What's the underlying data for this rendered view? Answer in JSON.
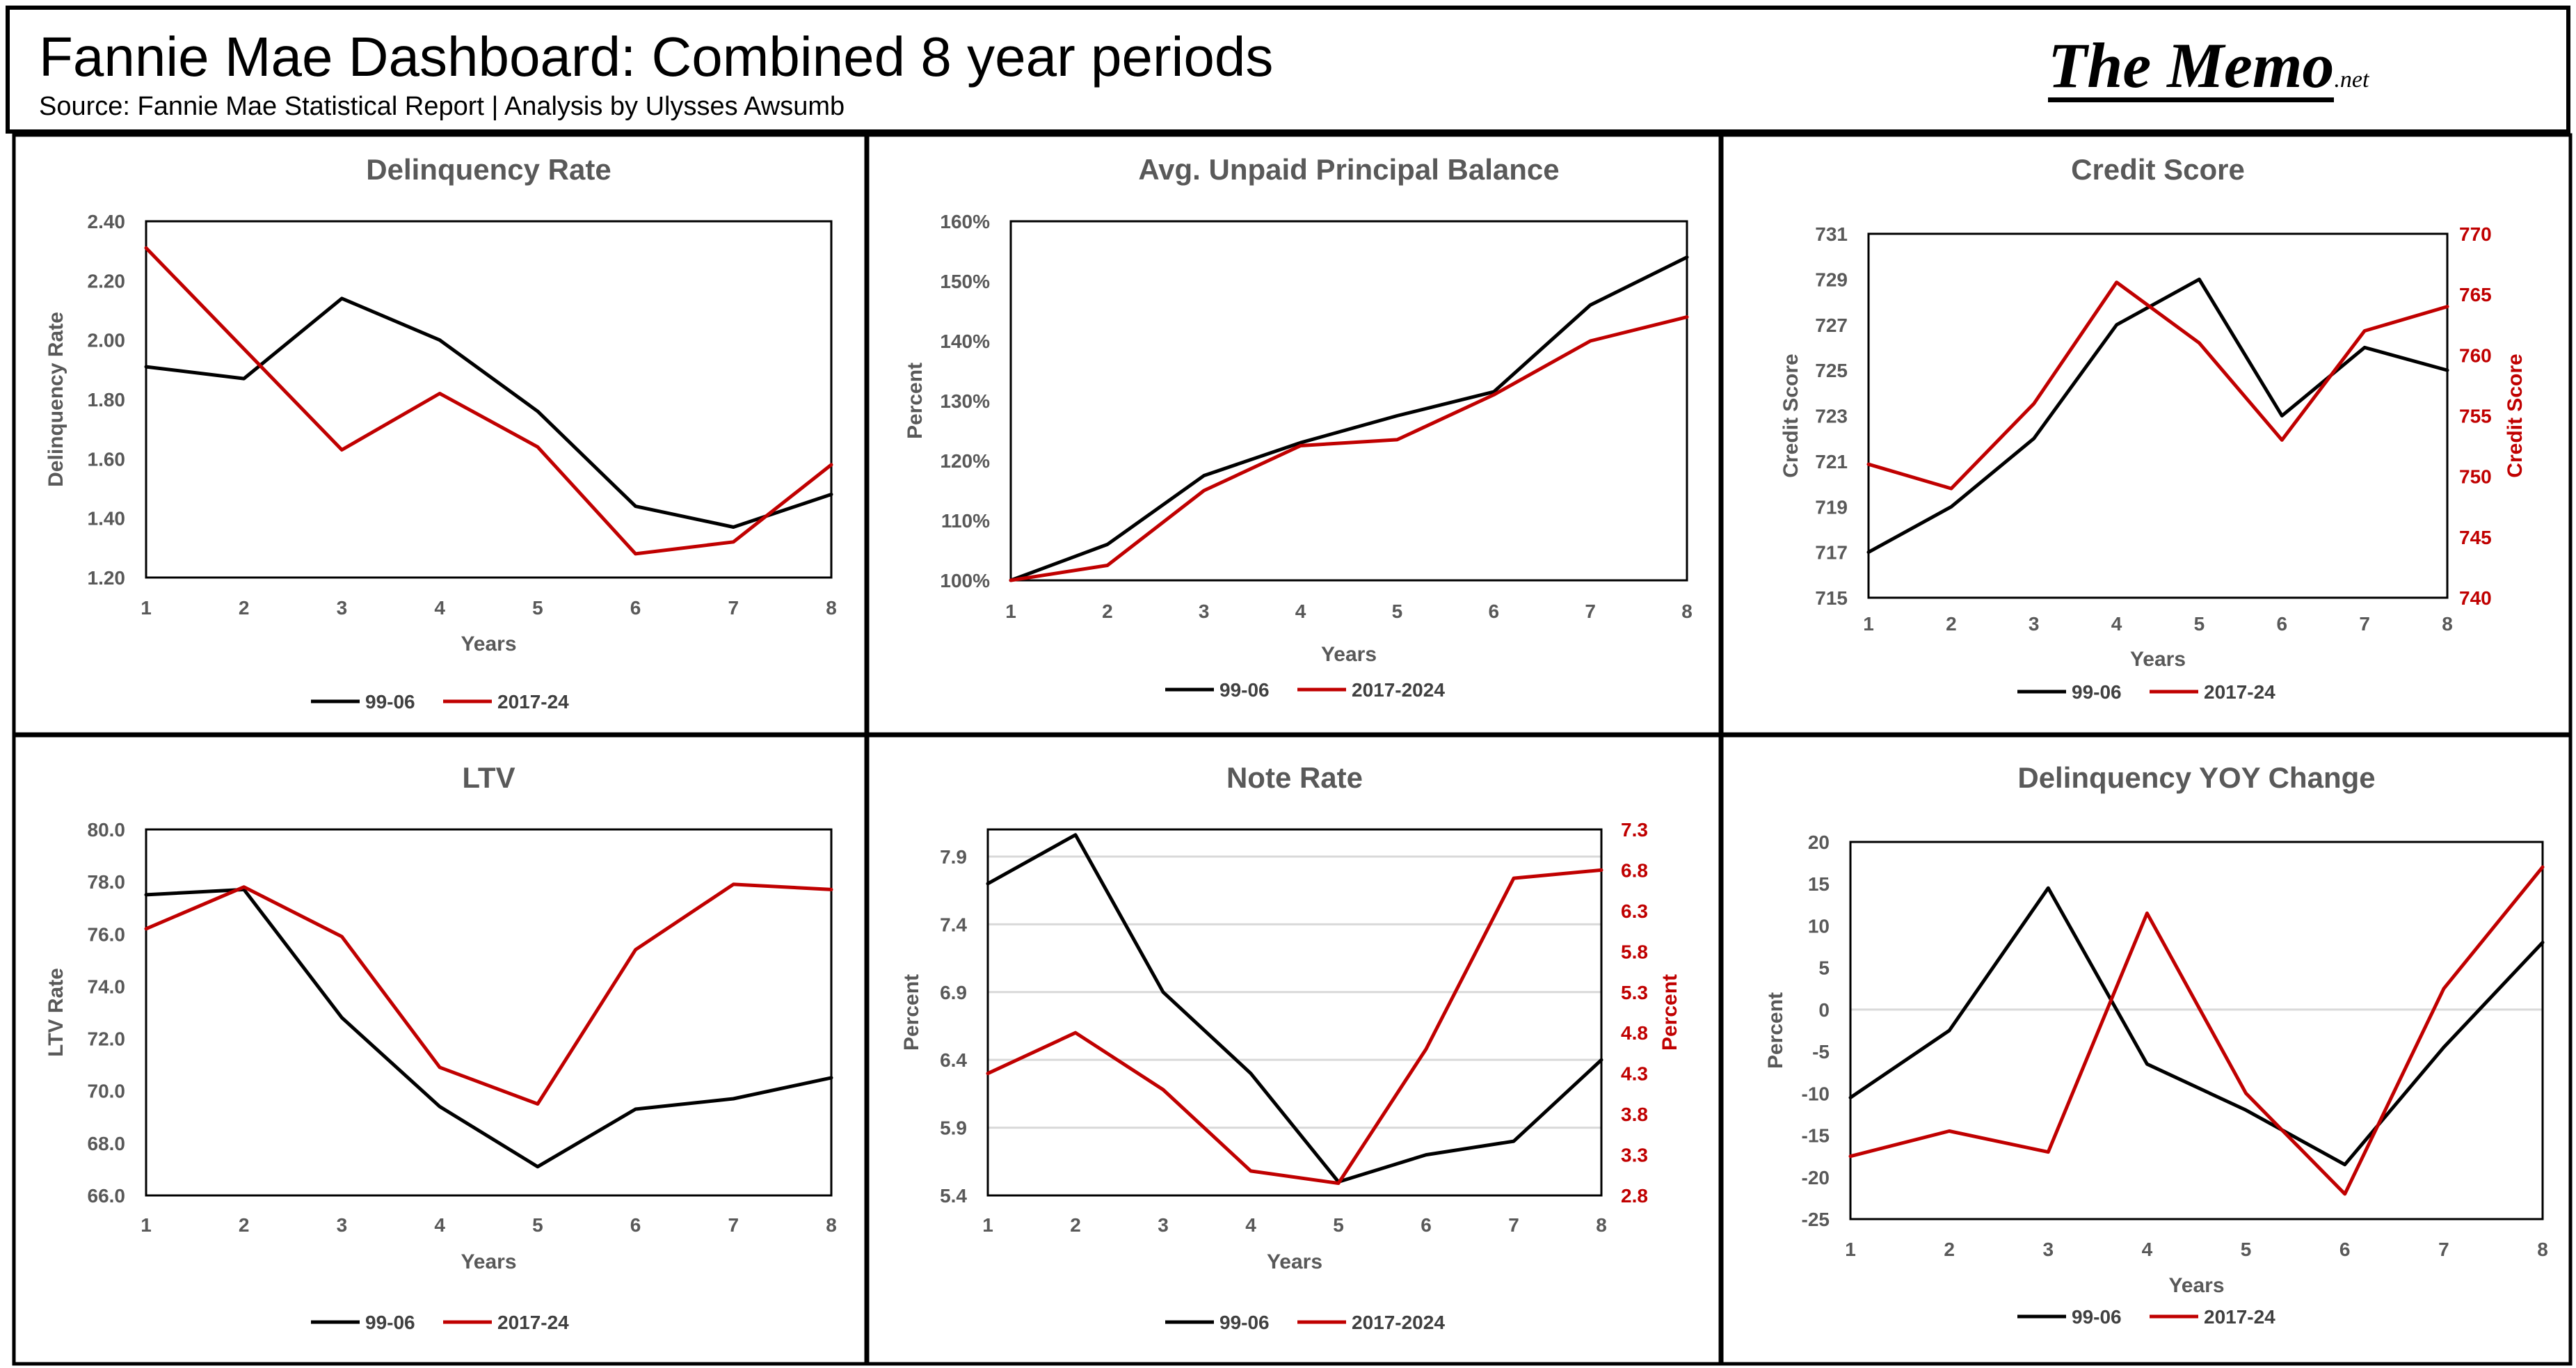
{
  "header": {
    "title": "Fannie Mae Dashboard: Combined 8 year periods",
    "subtitle": "Source: Fannie Mae Statistical Report | Analysis by Ulysses Awsumb",
    "logo_main": "The Memo",
    "logo_suffix": ".net"
  },
  "colors": {
    "series_a": "#000000",
    "series_b": "#c00000",
    "grid": "#d9d9d9",
    "text": "#595959"
  },
  "chart_data": [
    {
      "type": "line",
      "title": "Delinquency Rate",
      "xlabel": "Years",
      "ylabel": "Delinquency Rate",
      "x": [
        1,
        2,
        3,
        4,
        5,
        6,
        7,
        8
      ],
      "ylim": [
        1.2,
        2.4
      ],
      "yticks": [
        "1.20",
        "1.40",
        "1.60",
        "1.80",
        "2.00",
        "2.20",
        "2.40"
      ],
      "grid": false,
      "legend": "bottom",
      "series": [
        {
          "name": "99-06",
          "color": "#000000",
          "axis": "left",
          "values": [
            1.91,
            1.87,
            2.14,
            2.0,
            1.76,
            1.44,
            1.37,
            1.48
          ]
        },
        {
          "name": "2017-24",
          "color": "#c00000",
          "axis": "left",
          "values": [
            2.31,
            1.97,
            1.63,
            1.82,
            1.64,
            1.28,
            1.32,
            1.58
          ]
        }
      ]
    },
    {
      "type": "line",
      "title": "Avg. Unpaid Principal Balance",
      "xlabel": "Years",
      "ylabel": "Percent",
      "x": [
        1,
        2,
        3,
        4,
        5,
        6,
        7,
        8
      ],
      "ylim": [
        100,
        160
      ],
      "yticks": [
        "100%",
        "110%",
        "120%",
        "130%",
        "140%",
        "150%",
        "160%"
      ],
      "grid": false,
      "legend": "bottom",
      "series": [
        {
          "name": "99-06",
          "color": "#000000",
          "axis": "left",
          "values": [
            100,
            106,
            117.5,
            123,
            127.5,
            131.5,
            146,
            154
          ]
        },
        {
          "name": "2017-2024",
          "color": "#c00000",
          "axis": "left",
          "values": [
            100,
            102.5,
            115,
            122.5,
            123.5,
            131,
            140,
            144
          ]
        }
      ]
    },
    {
      "type": "line",
      "title": "Credit Score",
      "xlabel": "Years",
      "ylabel": "Credit Score",
      "y2label": "Credit Score",
      "x": [
        1,
        2,
        3,
        4,
        5,
        6,
        7,
        8
      ],
      "ylim": [
        715,
        731
      ],
      "yticks": [
        "715",
        "717",
        "719",
        "721",
        "723",
        "725",
        "727",
        "729",
        "731"
      ],
      "y2lim": [
        740,
        770
      ],
      "y2ticks": [
        "740",
        "745",
        "750",
        "755",
        "760",
        "765",
        "770"
      ],
      "grid": false,
      "legend": "bottom",
      "series": [
        {
          "name": "99-06",
          "color": "#000000",
          "axis": "left",
          "values": [
            717,
            719,
            722,
            727,
            729,
            723,
            726,
            725
          ]
        },
        {
          "name": "2017-24",
          "color": "#c00000",
          "axis": "right",
          "values": [
            751,
            749,
            756,
            766,
            761,
            753,
            762,
            764
          ]
        }
      ]
    },
    {
      "type": "line",
      "title": "LTV",
      "xlabel": "Years",
      "ylabel": "LTV Rate",
      "x": [
        1,
        2,
        3,
        4,
        5,
        6,
        7,
        8
      ],
      "ylim": [
        66,
        80
      ],
      "yticks": [
        "66.0",
        "68.0",
        "70.0",
        "72.0",
        "74.0",
        "76.0",
        "78.0",
        "80.0"
      ],
      "grid": false,
      "legend": "bottom",
      "series": [
        {
          "name": "99-06",
          "color": "#000000",
          "axis": "left",
          "values": [
            77.5,
            77.7,
            72.8,
            69.4,
            67.1,
            69.3,
            69.7,
            70.5
          ]
        },
        {
          "name": "2017-24",
          "color": "#c00000",
          "axis": "left",
          "values": [
            76.2,
            77.8,
            75.9,
            70.9,
            69.5,
            75.4,
            77.9,
            77.7
          ]
        }
      ]
    },
    {
      "type": "line",
      "title": "Note Rate",
      "xlabel": "Years",
      "ylabel": "Percent",
      "y2label": "Percent",
      "x": [
        1,
        2,
        3,
        4,
        5,
        6,
        7,
        8
      ],
      "ylim": [
        5.4,
        8.1
      ],
      "yticks": [
        "5.4",
        "5.9",
        "6.4",
        "6.9",
        "7.4",
        "7.9"
      ],
      "y2lim": [
        2.8,
        7.3
      ],
      "y2ticks": [
        "2.8",
        "3.3",
        "3.8",
        "4.3",
        "4.8",
        "5.3",
        "5.8",
        "6.3",
        "6.8",
        "7.3"
      ],
      "grid": true,
      "legend": "bottom",
      "series": [
        {
          "name": "99-06",
          "color": "#000000",
          "axis": "left",
          "values": [
            7.7,
            8.06,
            6.9,
            6.3,
            5.5,
            5.7,
            5.8,
            6.4
          ]
        },
        {
          "name": "2017-2024",
          "color": "#c00000",
          "axis": "right",
          "values": [
            4.3,
            4.8,
            4.1,
            3.1,
            2.95,
            4.6,
            6.7,
            6.8
          ]
        }
      ]
    },
    {
      "type": "line",
      "title": "Delinquency YOY Change",
      "xlabel": "Years",
      "ylabel": "Percent",
      "x": [
        1,
        2,
        3,
        4,
        5,
        6,
        7,
        8
      ],
      "ylim": [
        -25,
        20
      ],
      "yticks": [
        "-25",
        "-20",
        "-15",
        "-10",
        "-5",
        "0",
        "5",
        "10",
        "15",
        "20"
      ],
      "grid": false,
      "zero_line": true,
      "legend": "bottom",
      "series": [
        {
          "name": "99-06",
          "color": "#000000",
          "axis": "left",
          "values": [
            -10.5,
            -2.5,
            14.5,
            -6.5,
            -12,
            -18.5,
            -4.5,
            8
          ]
        },
        {
          "name": "2017-24",
          "color": "#c00000",
          "axis": "left",
          "values": [
            -17.5,
            -14.5,
            -17,
            11.5,
            -10,
            -22,
            2.5,
            17
          ]
        }
      ]
    }
  ]
}
